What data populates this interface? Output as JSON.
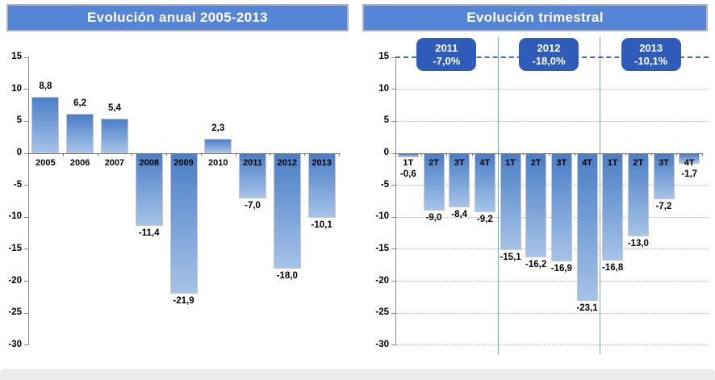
{
  "colors": {
    "banner_bg": "#5585d6",
    "banner_border": "#b4b4b4",
    "banner_text": "#ffffff",
    "badge_bg": "#2e5cb8",
    "badge_text": "#ffffff",
    "bar_top": "#4a7ec7",
    "bar_bottom": "#a6c3e8",
    "bar_border": "#c9c9c9",
    "axis_line": "#8c8c8c",
    "zero_line": "#707070",
    "grid_dotted": "#b5b5b5",
    "dashed_line": "#3b69bd",
    "separator_line": "#6fa8dc",
    "label_text": "#000000",
    "footer_bg": "#ebebeb"
  },
  "chart_data": [
    {
      "type": "bar",
      "title": "Evolución anual 2005-2013",
      "categories": [
        "2005",
        "2006",
        "2007",
        "2008",
        "2009",
        "2010",
        "2011",
        "2012",
        "2013"
      ],
      "values": [
        8.8,
        6.2,
        5.4,
        -11.4,
        -21.9,
        2.3,
        -7.0,
        -18.0,
        -10.1
      ],
      "value_labels": [
        "8,8",
        "6,2",
        "5,4",
        "-11,4",
        "-21,9",
        "2,3",
        "-7,0",
        "-18,0",
        "-10,1"
      ],
      "xlabel": "",
      "ylabel": "",
      "ylim": [
        -30,
        15
      ],
      "yticks": [
        "15",
        "10",
        "5",
        "0",
        "-5",
        "-10",
        "-15",
        "-20",
        "-25",
        "-30"
      ],
      "grid": false,
      "legend": "none"
    },
    {
      "type": "bar",
      "title": "Evolución trimestral",
      "categories": [
        "1T",
        "2T",
        "3T",
        "4T",
        "1T",
        "2T",
        "3T",
        "4T",
        "1T",
        "2T",
        "3T",
        "4T"
      ],
      "values": [
        -0.6,
        -9.0,
        -8.4,
        -9.2,
        -15.1,
        -16.2,
        -16.9,
        -23.1,
        -16.8,
        -13.0,
        -7.2,
        -1.7
      ],
      "value_labels": [
        "-0,6",
        "-9,0",
        "-8,4",
        "-9,2",
        "-15,1",
        "-16,2",
        "-16,9",
        "-23,1",
        "-16,8",
        "-13,0",
        "-7,2",
        "-1,7"
      ],
      "xlabel": "",
      "ylabel": "",
      "ylim": [
        -30,
        15
      ],
      "yticks": [
        "15",
        "10",
        "5",
        "0",
        "-5",
        "-10",
        "-15",
        "-20",
        "-25",
        "-30"
      ],
      "grid": true,
      "grid_style": "dotted",
      "dashed_top_line_at": 15,
      "year_groups": [
        {
          "label": "2011",
          "value": "-7,0%",
          "quarters": [
            0,
            3
          ]
        },
        {
          "label": "2012",
          "value": "-18,0%",
          "quarters": [
            4,
            7
          ]
        },
        {
          "label": "2013",
          "value": "-10,1%",
          "quarters": [
            8,
            11
          ]
        }
      ],
      "separators_after_index": [
        3,
        7
      ],
      "legend": "none"
    }
  ]
}
